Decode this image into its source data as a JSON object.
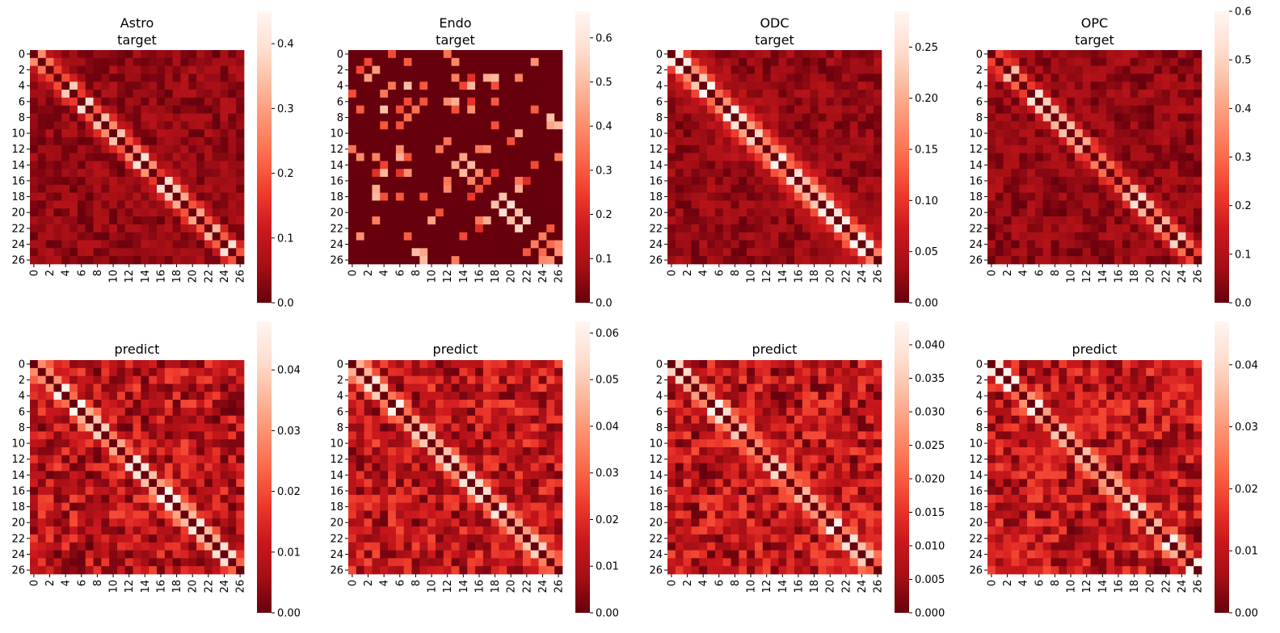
{
  "chart_data": [
    {
      "type": "heatmap",
      "title": "Astro\ntarget",
      "n": 27,
      "vmin": 0,
      "vmax": 0.45,
      "colorbar_ticks": [
        "0.0",
        "0.1",
        "0.2",
        "0.3",
        "0.4"
      ],
      "colormap": "Reds_r",
      "tick_labels": [
        "0",
        "2",
        "4",
        "6",
        "8",
        "10",
        "12",
        "14",
        "16",
        "18",
        "20",
        "22",
        "24",
        "26"
      ]
    },
    {
      "type": "heatmap",
      "title": "Endo\ntarget",
      "n": 27,
      "vmin": 0,
      "vmax": 0.66,
      "colorbar_ticks": [
        "0.0",
        "0.1",
        "0.2",
        "0.3",
        "0.4",
        "0.5",
        "0.6"
      ],
      "colormap": "Reds_r",
      "tick_labels": [
        "0",
        "2",
        "4",
        "6",
        "8",
        "10",
        "12",
        "14",
        "16",
        "18",
        "20",
        "22",
        "24",
        "26"
      ]
    },
    {
      "type": "heatmap",
      "title": "ODC\ntarget",
      "n": 27,
      "vmin": 0,
      "vmax": 0.285,
      "colorbar_ticks": [
        "0.00",
        "0.05",
        "0.10",
        "0.15",
        "0.20",
        "0.25"
      ],
      "colormap": "Reds_r",
      "tick_labels": [
        "0",
        "2",
        "4",
        "6",
        "8",
        "10",
        "12",
        "14",
        "16",
        "18",
        "20",
        "22",
        "24",
        "26"
      ]
    },
    {
      "type": "heatmap",
      "title": "OPC\ntarget",
      "n": 27,
      "vmin": 0,
      "vmax": 0.6,
      "colorbar_ticks": [
        "0.0",
        "0.1",
        "0.2",
        "0.3",
        "0.4",
        "0.5",
        "0.6"
      ],
      "colormap": "Reds_r",
      "tick_labels": [
        "0",
        "2",
        "4",
        "6",
        "8",
        "10",
        "12",
        "14",
        "16",
        "18",
        "20",
        "22",
        "24",
        "26"
      ]
    },
    {
      "type": "heatmap",
      "title": "predict",
      "n": 27,
      "vmin": 0,
      "vmax": 0.048,
      "colorbar_ticks": [
        "0.00",
        "0.01",
        "0.02",
        "0.03",
        "0.04"
      ],
      "colormap": "Reds_r",
      "tick_labels": [
        "0",
        "2",
        "4",
        "6",
        "8",
        "10",
        "12",
        "14",
        "16",
        "18",
        "20",
        "22",
        "24",
        "26"
      ]
    },
    {
      "type": "heatmap",
      "title": "predict",
      "n": 27,
      "vmin": 0,
      "vmax": 0.0625,
      "colorbar_ticks": [
        "0.00",
        "0.01",
        "0.02",
        "0.03",
        "0.04",
        "0.05",
        "0.06"
      ],
      "colormap": "Reds_r",
      "tick_labels": [
        "0",
        "2",
        "4",
        "6",
        "8",
        "10",
        "12",
        "14",
        "16",
        "18",
        "20",
        "22",
        "24",
        "26"
      ]
    },
    {
      "type": "heatmap",
      "title": "predict",
      "n": 27,
      "vmin": 0,
      "vmax": 0.0435,
      "colorbar_ticks": [
        "0.000",
        "0.005",
        "0.010",
        "0.015",
        "0.020",
        "0.025",
        "0.030",
        "0.035",
        "0.040"
      ],
      "colormap": "Reds_r",
      "tick_labels": [
        "0",
        "2",
        "4",
        "6",
        "8",
        "10",
        "12",
        "14",
        "16",
        "18",
        "20",
        "22",
        "24",
        "26"
      ]
    },
    {
      "type": "heatmap",
      "title": "predict",
      "n": 27,
      "vmin": 0,
      "vmax": 0.047,
      "colorbar_ticks": [
        "0.00",
        "0.01",
        "0.02",
        "0.03",
        "0.04"
      ],
      "colormap": "Reds_r",
      "tick_labels": [
        "0",
        "2",
        "4",
        "6",
        "8",
        "10",
        "12",
        "14",
        "16",
        "18",
        "20",
        "22",
        "24",
        "26"
      ]
    }
  ]
}
